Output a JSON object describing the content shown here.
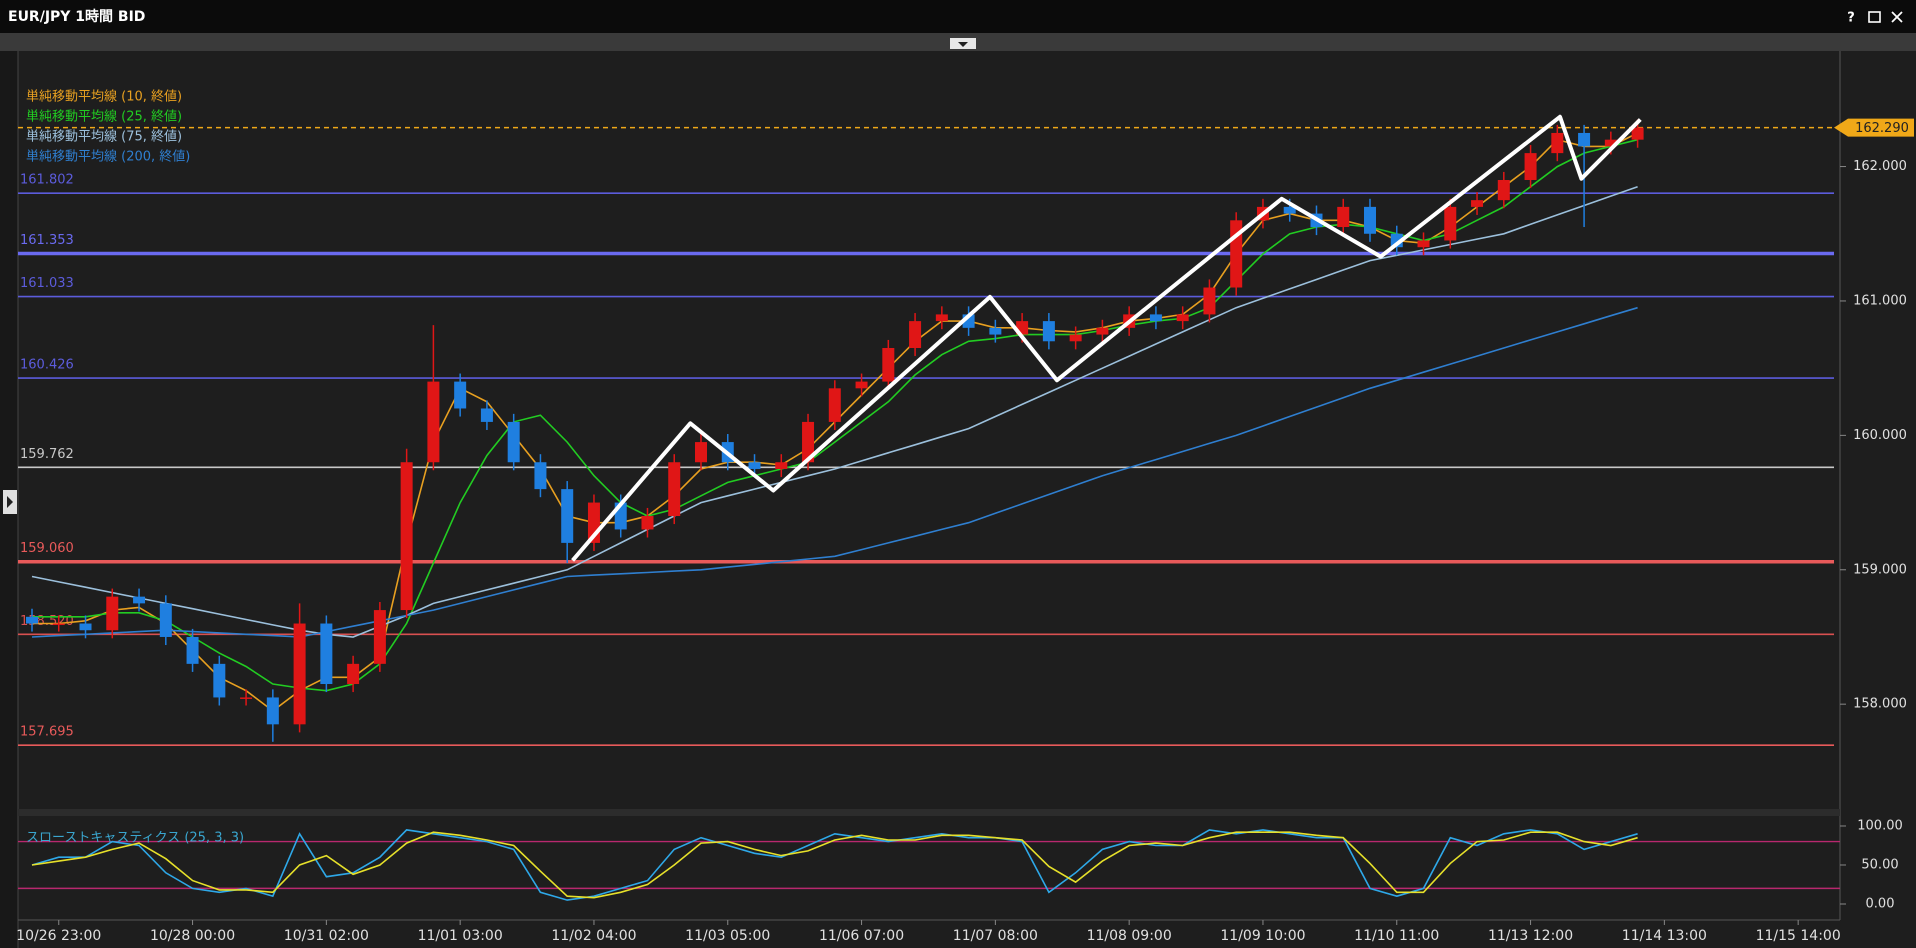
{
  "window": {
    "title": "EUR/JPY 1時間 BID",
    "help": "?"
  },
  "chart_data": [
    {
      "type": "candlestick",
      "categories": [
        null,
        "10/26 23:00",
        null,
        null,
        null,
        null,
        "10/28 00:00",
        null,
        null,
        null,
        null,
        "10/31 02:00",
        null,
        null,
        null,
        null,
        "11/01 03:00",
        null,
        null,
        null,
        null,
        "11/02 04:00",
        null,
        null,
        null,
        null,
        "11/03 05:00",
        null,
        null,
        null,
        null,
        "11/06 07:00",
        null,
        null,
        null,
        null,
        "11/07 08:00",
        null,
        null,
        null,
        null,
        "11/08 09:00",
        null,
        null,
        null,
        null,
        "11/09 10:00",
        null,
        null,
        null,
        null,
        "11/10 11:00",
        null,
        null,
        null,
        null,
        "11/13 12:00",
        null,
        null,
        null,
        null,
        "11/14 13:00",
        null,
        null,
        null,
        null,
        "11/15 14:00",
        null
      ],
      "open": [
        158.65,
        158.6,
        158.6,
        158.55,
        158.8,
        158.75,
        158.5,
        158.3,
        158.05,
        158.05,
        157.85,
        158.6,
        158.15,
        158.3,
        158.7,
        159.8,
        160.4,
        160.2,
        160.1,
        159.8,
        159.6,
        159.2,
        159.5,
        159.3,
        159.4,
        159.8,
        159.95,
        159.8,
        159.75,
        159.8,
        160.1,
        160.35,
        160.4,
        160.65,
        160.85,
        160.9,
        160.8,
        160.75,
        160.85,
        160.7,
        160.75,
        160.8,
        160.9,
        160.85,
        160.9,
        161.1,
        161.6,
        161.7,
        161.65,
        161.55,
        161.7,
        161.5,
        161.4,
        161.45,
        161.7,
        161.75,
        161.9,
        162.1,
        162.25,
        162.15,
        162.2,
        null,
        null,
        null,
        null,
        null,
        null,
        null
      ],
      "high": [
        158.71,
        158.66,
        158.66,
        158.86,
        158.86,
        158.81,
        158.56,
        158.36,
        158.11,
        158.11,
        158.75,
        158.66,
        158.36,
        158.76,
        159.9,
        160.82,
        160.46,
        160.26,
        160.16,
        159.86,
        159.66,
        159.56,
        159.56,
        159.46,
        159.86,
        160.01,
        160.01,
        159.86,
        159.86,
        160.16,
        160.41,
        160.46,
        160.71,
        160.91,
        160.96,
        160.96,
        160.86,
        160.91,
        160.91,
        160.81,
        160.86,
        160.96,
        160.96,
        160.96,
        161.16,
        161.66,
        161.76,
        161.76,
        161.71,
        161.76,
        161.76,
        161.56,
        161.51,
        161.76,
        161.81,
        161.96,
        162.16,
        162.31,
        162.31,
        162.26,
        162.35,
        null,
        null,
        null,
        null,
        null,
        null,
        null
      ],
      "low": [
        158.54,
        158.54,
        158.49,
        158.49,
        158.69,
        158.44,
        158.24,
        157.99,
        157.99,
        157.72,
        157.79,
        158.09,
        158.09,
        158.24,
        158.64,
        159.74,
        160.14,
        160.04,
        159.74,
        159.54,
        159.05,
        159.14,
        159.24,
        159.24,
        159.34,
        159.74,
        159.74,
        159.69,
        159.69,
        159.74,
        160.04,
        160.29,
        160.34,
        160.59,
        160.79,
        160.74,
        160.69,
        160.69,
        160.64,
        160.64,
        160.69,
        160.74,
        160.79,
        160.79,
        160.84,
        161.04,
        161.54,
        161.59,
        161.49,
        161.49,
        161.44,
        161.34,
        161.34,
        161.39,
        161.64,
        161.69,
        161.84,
        162.04,
        161.55,
        162.09,
        162.14,
        null,
        null,
        null,
        null,
        null,
        null,
        null
      ],
      "close": [
        158.6,
        158.6,
        158.55,
        158.8,
        158.75,
        158.5,
        158.3,
        158.05,
        158.05,
        157.85,
        158.6,
        158.15,
        158.3,
        158.7,
        159.8,
        160.4,
        160.2,
        160.1,
        159.8,
        159.6,
        159.2,
        159.5,
        159.3,
        159.4,
        159.8,
        159.95,
        159.8,
        159.75,
        159.8,
        160.1,
        160.35,
        160.4,
        160.65,
        160.85,
        160.9,
        160.8,
        160.75,
        160.85,
        160.7,
        160.75,
        160.8,
        160.9,
        160.85,
        160.9,
        161.1,
        161.6,
        161.7,
        161.65,
        161.55,
        161.7,
        161.5,
        161.4,
        161.45,
        161.7,
        161.75,
        161.9,
        162.1,
        162.25,
        162.15,
        162.2,
        162.29,
        null,
        null,
        null,
        null,
        null,
        null,
        null
      ],
      "up_color": "#e01616",
      "down_color": "#1f7fe0",
      "ylim": [
        157.22,
        162.83
      ],
      "yticks": [
        {
          "value": 158,
          "label": "158.000"
        },
        {
          "value": 159,
          "label": "159.000"
        },
        {
          "value": 160,
          "label": "160.000"
        },
        {
          "value": 161,
          "label": "161.000"
        },
        {
          "value": 162,
          "label": "162.000"
        }
      ],
      "series": [
        {
          "name": "単純移動平均線 (10, 終値)",
          "color": "#e8a020",
          "values": [
            158.6,
            158.6,
            158.62,
            158.7,
            158.72,
            158.6,
            158.4,
            158.2,
            158.1,
            157.95,
            158.1,
            158.2,
            158.2,
            158.35,
            159.2,
            159.95,
            160.35,
            160.25,
            160.0,
            159.75,
            159.4,
            159.35,
            159.35,
            159.4,
            159.55,
            159.75,
            159.8,
            159.8,
            159.78,
            159.9,
            160.1,
            160.3,
            160.5,
            160.7,
            160.85,
            160.85,
            160.8,
            160.8,
            160.78,
            160.77,
            160.8,
            160.85,
            160.87,
            160.9,
            161.05,
            161.35,
            161.6,
            161.65,
            161.6,
            161.6,
            161.55,
            161.45,
            161.43,
            161.55,
            161.7,
            161.85,
            162.0,
            162.2,
            162.15,
            162.15,
            162.25,
            null,
            null,
            null,
            null,
            null,
            null,
            null
          ]
        },
        {
          "name": "単純移動平均線 (25, 終値)",
          "color": "#22cc22",
          "values": [
            158.65,
            158.65,
            158.65,
            158.68,
            158.68,
            158.62,
            158.5,
            158.38,
            158.28,
            158.15,
            158.12,
            158.1,
            158.15,
            158.3,
            158.6,
            159.05,
            159.5,
            159.85,
            160.1,
            160.15,
            159.95,
            159.7,
            159.5,
            159.4,
            159.45,
            159.55,
            159.65,
            159.7,
            159.75,
            159.8,
            159.95,
            160.1,
            160.25,
            160.45,
            160.6,
            160.7,
            160.72,
            160.75,
            160.75,
            160.75,
            160.78,
            160.82,
            160.85,
            160.87,
            160.95,
            161.15,
            161.35,
            161.5,
            161.55,
            161.57,
            161.55,
            161.5,
            161.45,
            161.5,
            161.6,
            161.7,
            161.85,
            162.0,
            162.1,
            162.15,
            162.2,
            null,
            null,
            null,
            null,
            null,
            null,
            null
          ]
        },
        {
          "name": "単純移動平均線 (75, 終値)",
          "color": "#9cc0dc",
          "values": [
            158.95,
            158.91,
            158.87,
            158.83,
            158.79,
            158.75,
            158.71,
            158.67,
            158.63,
            158.59,
            158.55,
            158.52,
            158.5,
            158.58,
            158.66,
            158.75,
            158.8,
            158.85,
            158.9,
            158.95,
            159.0,
            159.1,
            159.2,
            159.3,
            159.4,
            159.5,
            159.55,
            159.6,
            159.65,
            159.7,
            159.75,
            159.81,
            159.87,
            159.93,
            159.99,
            160.05,
            160.14,
            160.23,
            160.32,
            160.41,
            160.5,
            160.59,
            160.68,
            160.77,
            160.86,
            160.95,
            161.02,
            161.09,
            161.16,
            161.23,
            161.3,
            161.34,
            161.38,
            161.42,
            161.46,
            161.5,
            161.57,
            161.64,
            161.71,
            161.78,
            161.85,
            null,
            null,
            null,
            null,
            null,
            null,
            null
          ]
        },
        {
          "name": "単純移動平均線 (200, 終値)",
          "color": "#2f7fd0",
          "values": [
            158.5,
            158.51,
            158.52,
            158.53,
            158.54,
            158.55,
            158.54,
            158.53,
            158.52,
            158.51,
            158.5,
            158.54,
            158.58,
            158.62,
            158.66,
            158.7,
            158.75,
            158.8,
            158.85,
            158.9,
            158.95,
            158.96,
            158.97,
            158.98,
            158.99,
            159.0,
            159.02,
            159.04,
            159.06,
            159.08,
            159.1,
            159.15,
            159.2,
            159.25,
            159.3,
            159.35,
            159.42,
            159.49,
            159.56,
            159.63,
            159.7,
            159.76,
            159.82,
            159.88,
            159.94,
            160.0,
            160.07,
            160.14,
            160.21,
            160.28,
            160.35,
            160.41,
            160.47,
            160.53,
            160.59,
            160.65,
            160.71,
            160.77,
            160.83,
            160.89,
            160.95,
            null,
            null,
            null,
            null,
            null,
            null,
            null
          ]
        }
      ],
      "levels": [
        {
          "value": 161.802,
          "color": "#5c5cdc"
        },
        {
          "value": 161.353,
          "color": "#6a6af0",
          "bold": true
        },
        {
          "value": 161.033,
          "color": "#5c5cdc"
        },
        {
          "value": 160.426,
          "color": "#5c5cdc"
        },
        {
          "value": 159.762,
          "color": "#c8c8c8"
        },
        {
          "value": 159.06,
          "label": "159.060",
          "color": "#e85a5a",
          "bold": true
        },
        {
          "value": 158.52,
          "label": "158.520",
          "color": "#d85050"
        },
        {
          "value": 157.695,
          "color": "#e85a5a"
        }
      ],
      "current_price": {
        "value": 162.29,
        "label": "162.290",
        "color": "#f0a818"
      },
      "trendline": {
        "color": "#ffffff",
        "points": [
          [
            20.2,
            159.07
          ],
          [
            24.6,
            160.09
          ],
          [
            27.7,
            159.59
          ],
          [
            35.8,
            161.03
          ],
          [
            38.3,
            160.41
          ],
          [
            46.7,
            161.76
          ],
          [
            50.4,
            161.33
          ],
          [
            57.1,
            162.37
          ],
          [
            57.9,
            161.91
          ],
          [
            60.1,
            162.35
          ]
        ]
      }
    },
    {
      "type": "line",
      "title": "スローストキャスティクス (25, 3, 3)",
      "ylim": [
        -15.4,
        112.8
      ],
      "yticks": [
        {
          "value": 0,
          "label": "0.00"
        },
        {
          "value": 50,
          "label": "50.00"
        },
        {
          "value": 100,
          "label": "100.00"
        }
      ],
      "levels": [
        80,
        20
      ],
      "level_color": "#b8286e",
      "series": [
        {
          "color": "#2ea8e8",
          "values": [
            50,
            60,
            60,
            80,
            75,
            40,
            20,
            15,
            20,
            10,
            90,
            35,
            40,
            60,
            95,
            90,
            85,
            80,
            70,
            15,
            5,
            10,
            20,
            30,
            70,
            85,
            75,
            65,
            60,
            75,
            90,
            85,
            80,
            85,
            90,
            85,
            85,
            80,
            15,
            40,
            70,
            80,
            75,
            75,
            95,
            90,
            95,
            90,
            85,
            85,
            20,
            10,
            20,
            85,
            75,
            90,
            95,
            90,
            70,
            80,
            90,
            null,
            null,
            null,
            null,
            null,
            null,
            null
          ]
        },
        {
          "color": "#e6e02a",
          "values": [
            50,
            55,
            60,
            70,
            78,
            58,
            30,
            18,
            18,
            15,
            50,
            62,
            38,
            50,
            78,
            92,
            88,
            82,
            75,
            42,
            10,
            8,
            15,
            25,
            50,
            78,
            80,
            70,
            62,
            68,
            82,
            88,
            82,
            82,
            88,
            88,
            85,
            82,
            48,
            28,
            55,
            75,
            78,
            75,
            85,
            92,
            92,
            92,
            88,
            85,
            52,
            15,
            15,
            52,
            80,
            82,
            92,
            92,
            80,
            75,
            85,
            null,
            null,
            null,
            null,
            null,
            null,
            null
          ]
        }
      ]
    }
  ]
}
